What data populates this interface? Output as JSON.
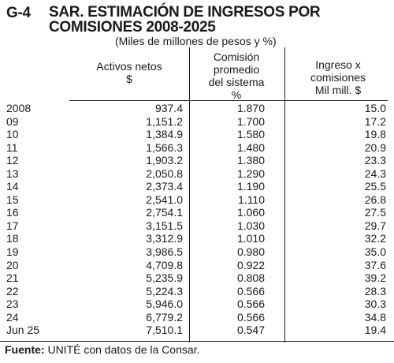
{
  "header": {
    "label": "G-4",
    "title": "SAR. ESTIMACIÓN DE INGRESOS POR COMISIONES 2008-2025",
    "subtitle": "(Miles de millones de pesos y %)"
  },
  "columns": [
    [
      "Activos netos",
      "$"
    ],
    [
      "Comisión",
      "promedio",
      "del sistema",
      "%"
    ],
    [
      "Ingreso x",
      "comisiones",
      "Mil mill. $"
    ]
  ],
  "rows": [
    [
      "2008",
      "937.4",
      "1.870",
      "15.0"
    ],
    [
      "09",
      "1,151.2",
      "1.700",
      "17.2"
    ],
    [
      "10",
      "1,384.9",
      "1.580",
      "19.8"
    ],
    [
      "11",
      "1,566.3",
      "1.480",
      "20.9"
    ],
    [
      "12",
      "1,903.2",
      "1.380",
      "23.3"
    ],
    [
      "13",
      "2,050.8",
      "1.290",
      "24.3"
    ],
    [
      "14",
      "2,373.4",
      "1.190",
      "25.5"
    ],
    [
      "15",
      "2,541.0",
      "1.110",
      "26.8"
    ],
    [
      "16",
      "2,754.1",
      "1.060",
      "27.5"
    ],
    [
      "17",
      "3,151.5",
      "1.030",
      "29.7"
    ],
    [
      "18",
      "3,312.9",
      "1.010",
      "32.2"
    ],
    [
      "19",
      "3,986.5",
      "0.980",
      "35.0"
    ],
    [
      "20",
      "4,709.8",
      "0.922",
      "37.6"
    ],
    [
      "21",
      "5,235.9",
      "0.808",
      "39.2"
    ],
    [
      "22",
      "5,224.3",
      "0.566",
      "28.3"
    ],
    [
      "23",
      "5,946.0",
      "0.566",
      "30.3"
    ],
    [
      "24",
      "6,779.2",
      "0.566",
      "34.8"
    ],
    [
      "Jun 25",
      "7,510.1",
      "0.547",
      "19.4"
    ]
  ],
  "source": {
    "label": "Fuente:",
    "text": " UNITÉ con datos de la Consar."
  }
}
